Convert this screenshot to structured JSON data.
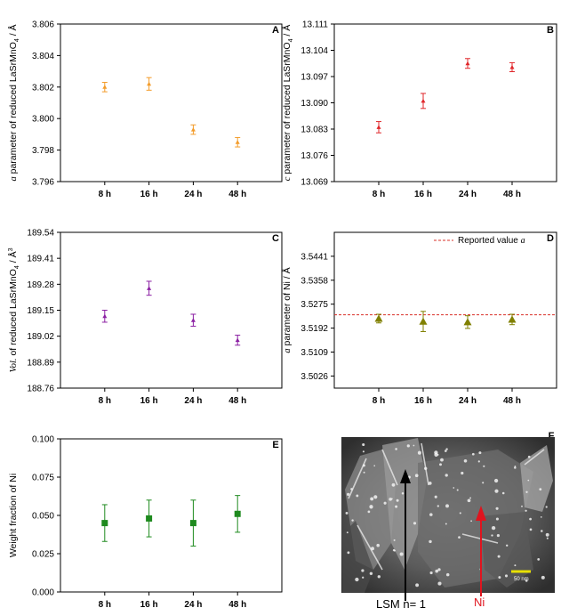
{
  "chart_data": [
    {
      "panel": "A",
      "type": "scatter",
      "categories": [
        "8 h",
        "16 h",
        "24 h",
        "48 h"
      ],
      "ylabel_italic": "a",
      "ylabel_rest": " parameter of reduced LaSrMnO",
      "ylabel_sub": "4",
      "ylabel_tail": " / Å",
      "ylim": [
        3.796,
        3.806
      ],
      "yticks": [
        "3.796",
        "3.798",
        "3.800",
        "3.802",
        "3.804",
        "3.806"
      ],
      "values": [
        3.802,
        3.8022,
        3.7993,
        3.7985
      ],
      "errors": [
        0.0003,
        0.0004,
        0.0003,
        0.0003
      ],
      "color": "#f39c2a",
      "marker": "triangle",
      "grid": false
    },
    {
      "panel": "B",
      "type": "scatter",
      "categories": [
        "8 h",
        "16 h",
        "24 h",
        "48 h"
      ],
      "ylabel_italic": "c",
      "ylabel_rest": " parameter of reduced LaSrMnO",
      "ylabel_sub": "4",
      "ylabel_tail": " / Å",
      "ylim": [
        13.069,
        13.111
      ],
      "yticks": [
        "13.069",
        "13.076",
        "13.083",
        "13.090",
        "13.097",
        "13.104",
        "13.111"
      ],
      "values": [
        13.0835,
        13.0905,
        13.1005,
        13.0995
      ],
      "errors": [
        0.0015,
        0.002,
        0.0013,
        0.0012
      ],
      "color": "#e0262a",
      "marker": "triangle",
      "grid": false
    },
    {
      "panel": "C",
      "type": "scatter",
      "categories": [
        "8 h",
        "16 h",
        "24 h",
        "48 h"
      ],
      "ylabel_italic": "Vol.",
      "ylabel_rest": " of reduced LaSrMnO",
      "ylabel_sub": "4",
      "ylabel_tail": " / Å",
      "ylabel_sup": "3",
      "ylim": [
        188.76,
        189.54
      ],
      "yticks": [
        "188.76",
        "188.89",
        "189.02",
        "189.15",
        "189.28",
        "189.41",
        "189.54"
      ],
      "values": [
        189.12,
        189.26,
        189.1,
        189.0
      ],
      "errors": [
        0.03,
        0.035,
        0.03,
        0.025
      ],
      "color": "#8b1fa3",
      "marker": "triangle",
      "grid": false
    },
    {
      "panel": "D",
      "type": "scatter",
      "categories": [
        "8 h",
        "16 h",
        "24 h",
        "48 h"
      ],
      "ylabel_italic": "a",
      "ylabel_rest": " parameter of Ni / Å",
      "ylim": [
        3.4984,
        3.5524
      ],
      "yticks": [
        "3.5026",
        "3.5109",
        "3.5192",
        "3.5275",
        "3.5358",
        "3.5441"
      ],
      "values": [
        3.5225,
        3.5215,
        3.5213,
        3.5222
      ],
      "errors": [
        0.0015,
        0.0035,
        0.0022,
        0.0018
      ],
      "color": "#808000",
      "marker": "triangle",
      "reference_line": {
        "value": 3.5238,
        "label_text": "Reported value ",
        "label_italic": "a",
        "color": "#d9302a"
      },
      "legend_position": "top-right",
      "grid": false
    },
    {
      "panel": "E",
      "type": "scatter",
      "categories": [
        "8 h",
        "16 h",
        "24 h",
        "48 h"
      ],
      "ylabel": "Weight fraction of Ni",
      "ylim": [
        0.0,
        0.1
      ],
      "yticks": [
        "0.000",
        "0.025",
        "0.050",
        "0.075",
        "0.100"
      ],
      "values": [
        0.045,
        0.048,
        0.045,
        0.051
      ],
      "errors": [
        0.012,
        0.012,
        0.015,
        0.012
      ],
      "color": "#1e8a1e",
      "marker": "square",
      "grid": false
    }
  ],
  "sem": {
    "panel": "F",
    "scale_text": "50 nm",
    "label_lsm": "LSM n= 1",
    "label_ni": "Ni",
    "color_lsm_arrow": "#000000",
    "color_ni_arrow": "#e0141e"
  }
}
